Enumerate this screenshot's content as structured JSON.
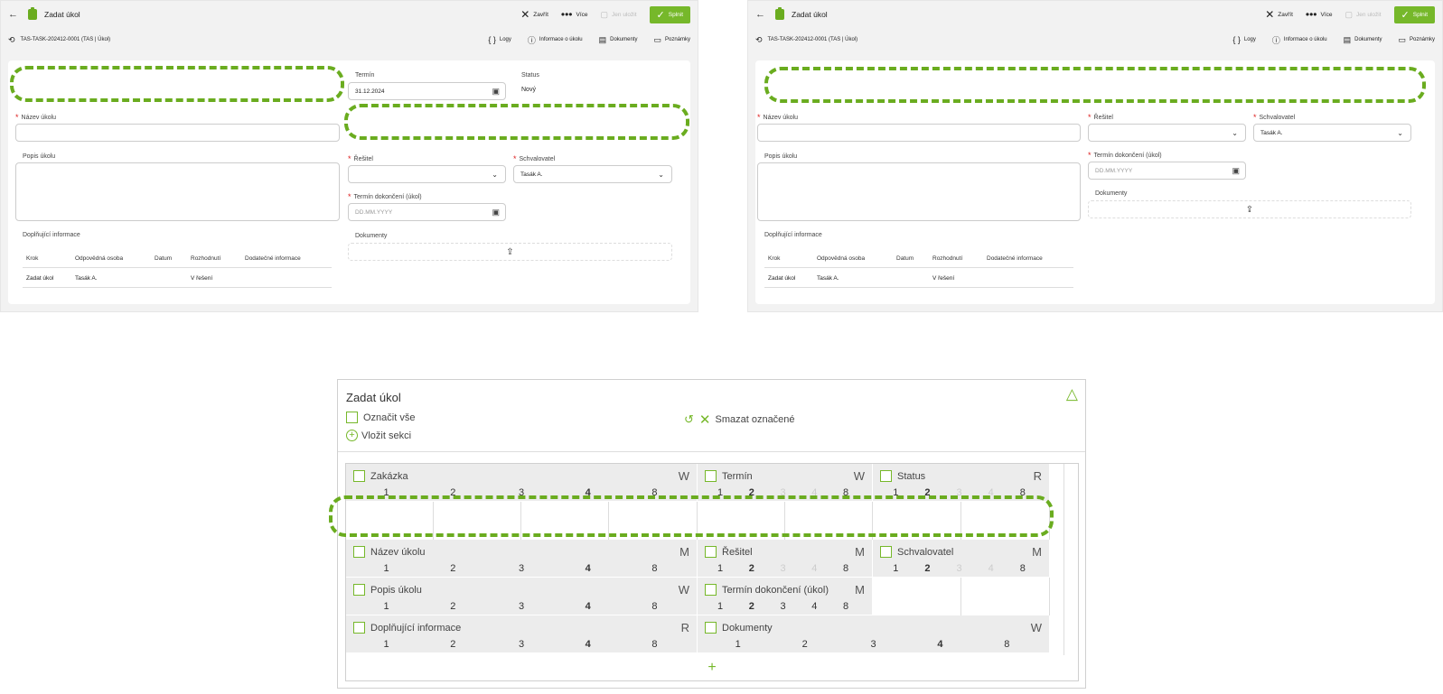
{
  "app": {
    "title": "Zadat úkol",
    "actions": {
      "close": "Zavřít",
      "more": "Více",
      "save": "Jen uložit",
      "submit": "Splnit"
    },
    "task_id": "TAS-TASK-202412-0001 (TAS | Úkol)",
    "tabs": {
      "logs": "Logy",
      "info": "Informace o úkolu",
      "docs": "Dokumenty",
      "notes": "Poznámky"
    },
    "form": {
      "termin_label": "Termín",
      "termin_value": "31.12.2024",
      "status_label": "Status",
      "status_value": "Nový",
      "nazev_label": "Název úkolu",
      "popis_label": "Popis úkolu",
      "resitel_label": "Řešitel",
      "schvalovatel_label": "Schvalovatel",
      "schvalovatel_value": "Tasák A.",
      "termin_dok_label": "Termín dokončení (úkol)",
      "date_placeholder": "DD.MM.YYYY",
      "dokumenty_label": "Dokumenty",
      "doplnujici_label": "Doplňující informace"
    },
    "history": {
      "headers": [
        "Krok",
        "Odpovědná osoba",
        "Datum",
        "Rozhodnutí",
        "Dodatečné informace"
      ],
      "row": [
        "Zadat úkol",
        "Tasák A.",
        "",
        "V řešení",
        ""
      ]
    }
  },
  "designer": {
    "title": "Zadat úkol",
    "select_all": "Označit vše",
    "delete_selected": "Smazat označené",
    "insert_section": "Vložit sekci",
    "fields": {
      "zakazka": {
        "name": "Zakázka",
        "mode": "W"
      },
      "termin": {
        "name": "Termín",
        "mode": "W"
      },
      "status": {
        "name": "Status",
        "mode": "R"
      },
      "nazev": {
        "name": "Název úkolu",
        "mode": "M"
      },
      "resitel": {
        "name": "Řešitel",
        "mode": "M"
      },
      "schvalovatel": {
        "name": "Schvalovatel",
        "mode": "M"
      },
      "popis": {
        "name": "Popis úkolu",
        "mode": "W"
      },
      "termin_dok": {
        "name": "Termín dokončení (úkol)",
        "mode": "M"
      },
      "doplnujici": {
        "name": "Doplňující informace",
        "mode": "R"
      },
      "dokumenty": {
        "name": "Dokumenty",
        "mode": "W"
      }
    },
    "widths": [
      "1",
      "2",
      "3",
      "4",
      "8"
    ]
  }
}
